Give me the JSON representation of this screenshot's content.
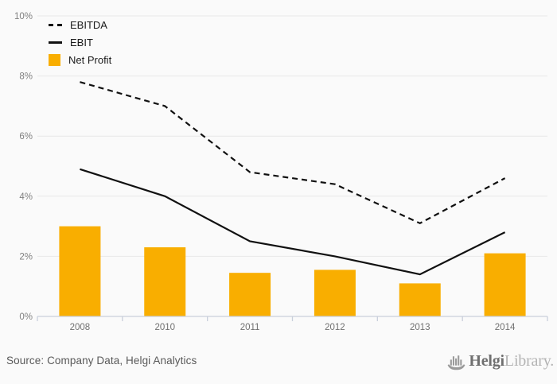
{
  "chart_data": {
    "type": "combo",
    "categories": [
      "2008",
      "2010",
      "2011",
      "2012",
      "2013",
      "2014"
    ],
    "series": [
      {
        "name": "EBITDA",
        "type": "line",
        "style": "dashed",
        "color": "#111111",
        "values": [
          7.8,
          7.0,
          4.8,
          4.4,
          3.1,
          4.6
        ]
      },
      {
        "name": "EBIT",
        "type": "line",
        "style": "solid",
        "color": "#111111",
        "values": [
          4.9,
          4.0,
          2.5,
          2.0,
          1.4,
          2.8
        ]
      },
      {
        "name": "Net Profit",
        "type": "bar",
        "color": "#f9ae00",
        "values": [
          3.0,
          2.3,
          1.45,
          1.55,
          1.1,
          2.1
        ]
      }
    ],
    "title": "",
    "xlabel": "",
    "ylabel": "",
    "ylim": [
      0,
      10
    ],
    "yticks": [
      0,
      2,
      4,
      6,
      8,
      10
    ],
    "ytick_suffix": "%",
    "grid": true,
    "legend_position": "top-left"
  },
  "style": {
    "background": "#fafafa",
    "gridline_color": "#e8e8e8",
    "axis_color": "#c9cfdb",
    "ytick_label_color": "#808080",
    "xtick_label_color": "#707070",
    "bar_color": "#f9ae00",
    "line_color": "#111111"
  },
  "footer": {
    "source": "Source: Company Data, Helgi Analytics",
    "logo_brand": "Helgi",
    "logo_suffix": "Library."
  }
}
